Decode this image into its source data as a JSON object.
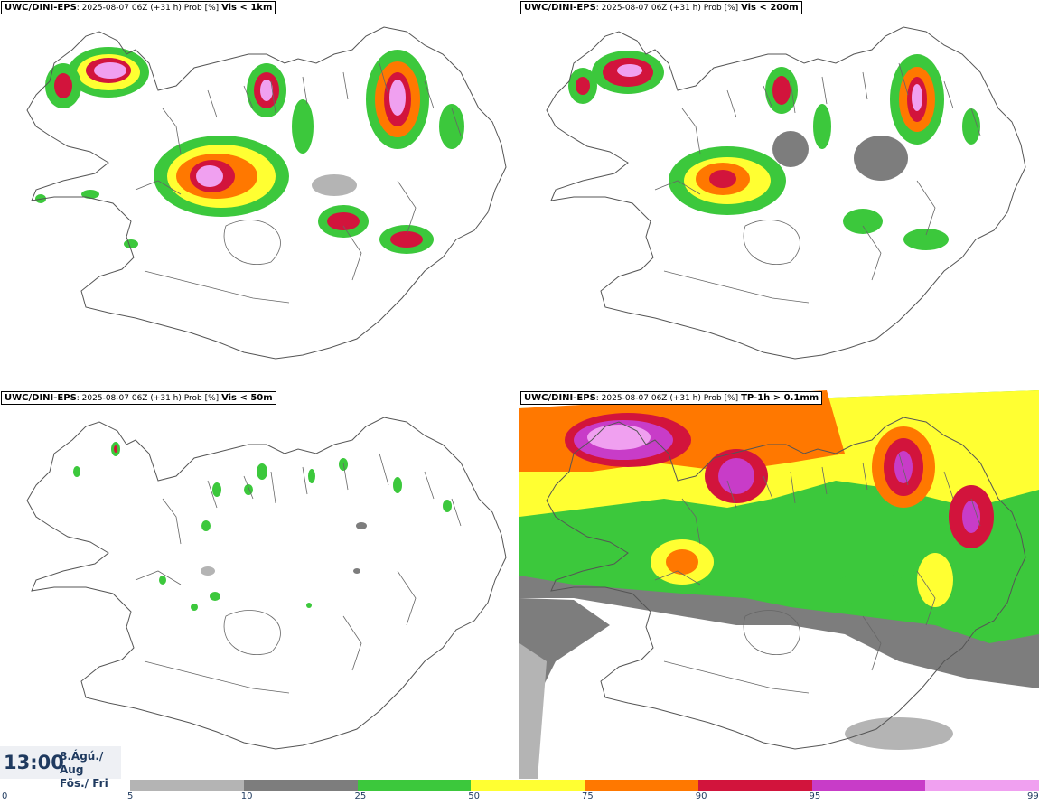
{
  "panels": [
    {
      "model": "UWC/DINI-EPS",
      "run": "2025-08-07 06Z (+31 h) Prob [%]",
      "variable": "Vis < 1km"
    },
    {
      "model": "UWC/DINI-EPS",
      "run": "2025-08-07 06Z (+31 h) Prob [%]",
      "variable": "Vis < 200m"
    },
    {
      "model": "UWC/DINI-EPS",
      "run": "2025-08-07 06Z (+31 h) Prob [%]",
      "variable": "Vis < 50m"
    },
    {
      "model": "UWC/DINI-EPS",
      "run": "2025-08-07 06Z (+31 h) Prob [%]",
      "variable": "TP-1h > 0.1mm"
    }
  ],
  "valid_time": {
    "time": "13:00",
    "date_line1": "8.Ágú./ Aug",
    "date_line2": "Fös./ Fri"
  },
  "colorbar": {
    "ticks": [
      "0",
      "5",
      "10",
      "25",
      "50",
      "75",
      "90",
      "95",
      "99"
    ],
    "bins": [
      {
        "from": 5,
        "to": 10,
        "color": "#b4b4b4"
      },
      {
        "from": 10,
        "to": 25,
        "color": "#7d7d7d"
      },
      {
        "from": 25,
        "to": 50,
        "color": "#3cc83c"
      },
      {
        "from": 50,
        "to": 75,
        "color": "#ffff32"
      },
      {
        "from": 75,
        "to": 90,
        "color": "#ff7800"
      },
      {
        "from": 90,
        "to": 95,
        "color": "#d2143c"
      },
      {
        "from": 95,
        "to": 99,
        "color": "#c83cc8"
      },
      {
        "from": 99,
        "to": 100,
        "color": "#f0a0f0"
      }
    ]
  }
}
